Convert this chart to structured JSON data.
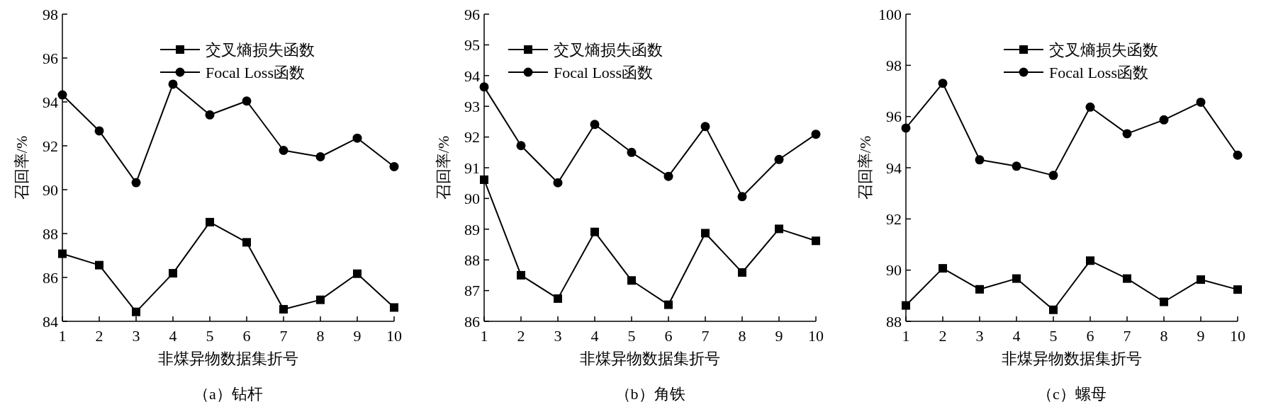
{
  "chart_data": [
    {
      "type": "line",
      "ylabel": "召回率/%",
      "xlabel": "非煤异物数据集折号",
      "annotations": [
        "（a）钻杆"
      ],
      "categories": [
        "1",
        "2",
        "3",
        "4",
        "5",
        "6",
        "7",
        "8",
        "9",
        "10"
      ],
      "ylim": [
        84,
        98
      ],
      "yticks": [
        84,
        86,
        88,
        90,
        92,
        94,
        96,
        98
      ],
      "legend": "top right",
      "grid": false,
      "line_style": "solid",
      "series": [
        {
          "name": "交叉熵损失函数",
          "color": "#000000",
          "marker": "square",
          "values": [
            87.08,
            86.56,
            84.43,
            86.19,
            88.52,
            87.6,
            84.55,
            84.98,
            86.17,
            84.63
          ]
        },
        {
          "name": "Focal Loss函数",
          "color": "#000000",
          "marker": "circle",
          "values": [
            94.32,
            92.68,
            90.32,
            94.81,
            93.41,
            94.04,
            91.79,
            91.5,
            92.35,
            91.05
          ]
        }
      ]
    },
    {
      "type": "line",
      "ylabel": "召回率/%",
      "xlabel": "非煤异物数据集折号",
      "annotations": [
        "（b）角铁"
      ],
      "categories": [
        "1",
        "2",
        "3",
        "4",
        "5",
        "6",
        "7",
        "8",
        "9",
        "10"
      ],
      "ylim": [
        86,
        96
      ],
      "yticks": [
        86,
        87,
        88,
        89,
        90,
        91,
        92,
        93,
        94,
        95,
        96
      ],
      "legend": "top",
      "grid": false,
      "line_style": "solid",
      "series": [
        {
          "name": "交叉熵损失函数",
          "color": "#000000",
          "marker": "square",
          "values": [
            90.61,
            87.5,
            86.74,
            88.91,
            87.33,
            86.54,
            88.87,
            87.59,
            89.01,
            88.62
          ]
        },
        {
          "name": "Focal Loss函数",
          "color": "#000000",
          "marker": "circle",
          "values": [
            93.63,
            91.72,
            90.51,
            92.41,
            91.5,
            90.72,
            92.34,
            90.06,
            91.27,
            92.09
          ]
        }
      ]
    },
    {
      "type": "line",
      "ylabel": "召回率/%",
      "xlabel": "非煤异物数据集折号",
      "annotations": [
        "（c）螺母"
      ],
      "categories": [
        "1",
        "2",
        "3",
        "4",
        "5",
        "6",
        "7",
        "8",
        "9",
        "10"
      ],
      "ylim": [
        88,
        100
      ],
      "yticks": [
        88,
        90,
        92,
        94,
        96,
        98,
        100
      ],
      "legend": "top right",
      "grid": false,
      "line_style": "solid",
      "series": [
        {
          "name": "交叉熵损失函数",
          "color": "#000000",
          "marker": "square",
          "values": [
            88.62,
            90.07,
            89.25,
            89.67,
            88.45,
            90.37,
            89.67,
            88.76,
            89.63,
            89.24
          ]
        },
        {
          "name": "Focal Loss函数",
          "color": "#000000",
          "marker": "circle",
          "values": [
            95.55,
            97.3,
            94.31,
            94.06,
            93.7,
            96.37,
            95.33,
            95.87,
            96.56,
            94.49
          ]
        }
      ]
    }
  ]
}
